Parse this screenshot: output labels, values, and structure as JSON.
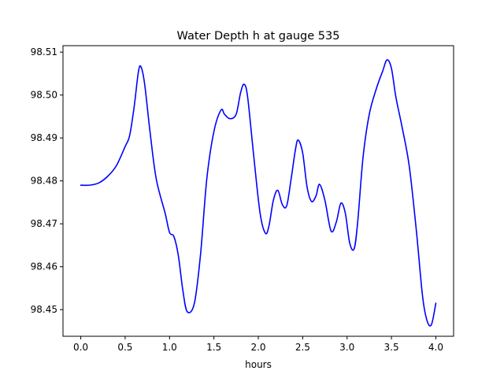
{
  "chart_data": {
    "type": "line",
    "title": "Water Depth h at gauge 535",
    "xlabel": "hours",
    "ylabel": "",
    "xlim": [
      -0.2,
      4.2
    ],
    "ylim": [
      98.4438,
      98.5115
    ],
    "xticks": [
      0.0,
      0.5,
      1.0,
      1.5,
      2.0,
      2.5,
      3.0,
      3.5,
      4.0
    ],
    "xtick_labels": [
      "0.0",
      "0.5",
      "1.0",
      "1.5",
      "2.0",
      "2.5",
      "3.0",
      "3.5",
      "4.0"
    ],
    "yticks": [
      98.45,
      98.46,
      98.47,
      98.48,
      98.49,
      98.5,
      98.51
    ],
    "ytick_labels": [
      "98.45",
      "98.46",
      "98.47",
      "98.48",
      "98.49",
      "98.50",
      "98.51"
    ],
    "grid": false,
    "series": [
      {
        "color": "#0000ff",
        "x": [
          0.0,
          0.1,
          0.2,
          0.3,
          0.4,
          0.5,
          0.55,
          0.6,
          0.65,
          0.68,
          0.72,
          0.78,
          0.85,
          0.95,
          1.0,
          1.05,
          1.1,
          1.15,
          1.2,
          1.28,
          1.35,
          1.42,
          1.5,
          1.58,
          1.62,
          1.68,
          1.75,
          1.8,
          1.84,
          1.88,
          1.95,
          2.02,
          2.08,
          2.12,
          2.17,
          2.22,
          2.27,
          2.32,
          2.37,
          2.42,
          2.45,
          2.5,
          2.55,
          2.6,
          2.65,
          2.69,
          2.75,
          2.82,
          2.88,
          2.93,
          2.98,
          3.03,
          3.08,
          3.12,
          3.18,
          3.25,
          3.33,
          3.4,
          3.45,
          3.5,
          3.55,
          3.62,
          3.7,
          3.78,
          3.85,
          3.9,
          3.95,
          4.0
        ],
        "y": [
          98.479,
          98.479,
          98.4795,
          98.481,
          98.4835,
          98.488,
          98.4905,
          98.497,
          98.5055,
          98.5065,
          98.5025,
          98.4915,
          98.4805,
          98.4725,
          98.468,
          98.467,
          98.4625,
          98.4545,
          98.4495,
          98.4515,
          98.463,
          98.4805,
          98.4915,
          98.4965,
          98.4955,
          98.4945,
          98.4955,
          98.5005,
          98.5025,
          98.4995,
          98.4855,
          98.4725,
          98.4678,
          98.4695,
          98.4755,
          98.4778,
          98.4745,
          98.4742,
          98.4805,
          98.4875,
          98.4895,
          98.4865,
          98.4785,
          98.4752,
          98.4765,
          98.4792,
          98.4755,
          98.4683,
          98.4705,
          98.4748,
          98.4725,
          98.4655,
          98.4642,
          98.4705,
          98.4855,
          98.4955,
          98.5015,
          98.5055,
          98.5082,
          98.5062,
          98.4995,
          98.4925,
          98.4835,
          98.4685,
          98.4532,
          98.4475,
          98.4465,
          98.4515
        ]
      }
    ]
  }
}
